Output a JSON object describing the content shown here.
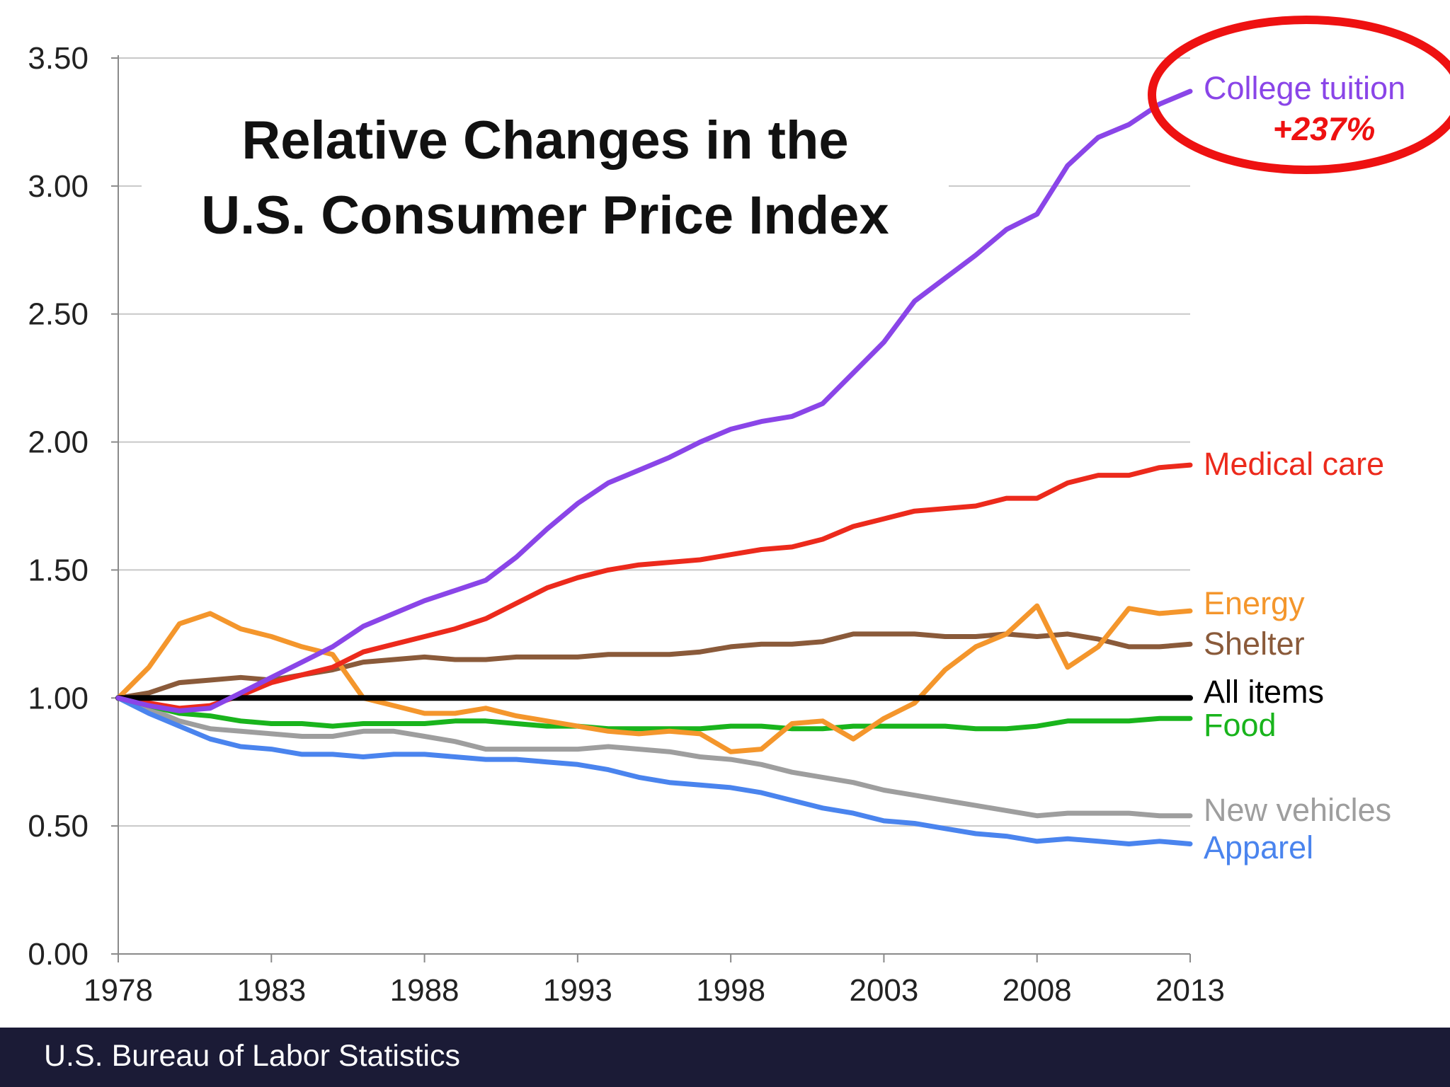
{
  "chart_data": {
    "type": "line",
    "title": "Relative Changes in the",
    "subtitle": "U.S. Consumer Price Index",
    "xlabel": "",
    "ylabel": "",
    "xlim": [
      1978,
      2013
    ],
    "ylim": [
      0,
      3.5
    ],
    "x_ticks": [
      "1978",
      "1983",
      "1988",
      "1993",
      "1998",
      "2003",
      "2008",
      "2013"
    ],
    "y_ticks": [
      "0.00",
      "0.50",
      "1.00",
      "1.50",
      "2.00",
      "2.50",
      "3.00",
      "3.50"
    ],
    "grid": true,
    "legend": "inline labels at right end of lines",
    "x": [
      1978,
      1979,
      1980,
      1981,
      1982,
      1983,
      1984,
      1985,
      1986,
      1987,
      1988,
      1989,
      1990,
      1991,
      1992,
      1993,
      1994,
      1995,
      1996,
      1997,
      1998,
      1999,
      2000,
      2001,
      2002,
      2003,
      2004,
      2005,
      2006,
      2007,
      2008,
      2009,
      2010,
      2011,
      2012,
      2013
    ],
    "series": [
      {
        "name": "College tuition",
        "color": "#8a45e8",
        "values": [
          1.0,
          0.97,
          0.95,
          0.96,
          1.02,
          1.08,
          1.14,
          1.2,
          1.28,
          1.33,
          1.38,
          1.42,
          1.46,
          1.55,
          1.66,
          1.76,
          1.84,
          1.89,
          1.94,
          2.0,
          2.05,
          2.08,
          2.1,
          2.15,
          2.27,
          2.39,
          2.55,
          2.64,
          2.73,
          2.83,
          2.89,
          3.08,
          3.19,
          3.24,
          3.32,
          3.37
        ]
      },
      {
        "name": "Medical care",
        "color": "#ec2a1c",
        "values": [
          1.0,
          0.98,
          0.96,
          0.97,
          1.01,
          1.06,
          1.09,
          1.12,
          1.18,
          1.21,
          1.24,
          1.27,
          1.31,
          1.37,
          1.43,
          1.47,
          1.5,
          1.52,
          1.53,
          1.54,
          1.56,
          1.58,
          1.59,
          1.62,
          1.67,
          1.7,
          1.73,
          1.74,
          1.75,
          1.78,
          1.78,
          1.84,
          1.87,
          1.87,
          1.9,
          1.91
        ]
      },
      {
        "name": "Energy",
        "color": "#f4962c",
        "values": [
          1.0,
          1.12,
          1.29,
          1.33,
          1.27,
          1.24,
          1.2,
          1.17,
          1.0,
          0.97,
          0.94,
          0.94,
          0.96,
          0.93,
          0.91,
          0.89,
          0.87,
          0.86,
          0.87,
          0.86,
          0.79,
          0.8,
          0.9,
          0.91,
          0.84,
          0.92,
          0.98,
          1.11,
          1.2,
          1.25,
          1.36,
          1.12,
          1.2,
          1.35,
          1.33,
          1.34
        ]
      },
      {
        "name": "Shelter",
        "color": "#8a5a3a",
        "values": [
          1.0,
          1.02,
          1.06,
          1.07,
          1.08,
          1.07,
          1.09,
          1.11,
          1.14,
          1.15,
          1.16,
          1.15,
          1.15,
          1.16,
          1.16,
          1.16,
          1.17,
          1.17,
          1.17,
          1.18,
          1.2,
          1.21,
          1.21,
          1.22,
          1.25,
          1.25,
          1.25,
          1.24,
          1.24,
          1.25,
          1.24,
          1.25,
          1.23,
          1.2,
          1.2,
          1.21
        ]
      },
      {
        "name": "All items",
        "color": "#000000",
        "values": [
          1.0,
          1.0,
          1.0,
          1.0,
          1.0,
          1.0,
          1.0,
          1.0,
          1.0,
          1.0,
          1.0,
          1.0,
          1.0,
          1.0,
          1.0,
          1.0,
          1.0,
          1.0,
          1.0,
          1.0,
          1.0,
          1.0,
          1.0,
          1.0,
          1.0,
          1.0,
          1.0,
          1.0,
          1.0,
          1.0,
          1.0,
          1.0,
          1.0,
          1.0,
          1.0,
          1.0
        ]
      },
      {
        "name": "Food",
        "color": "#19b41c",
        "values": [
          1.0,
          0.97,
          0.94,
          0.93,
          0.91,
          0.9,
          0.9,
          0.89,
          0.9,
          0.9,
          0.9,
          0.91,
          0.91,
          0.9,
          0.89,
          0.89,
          0.88,
          0.88,
          0.88,
          0.88,
          0.89,
          0.89,
          0.88,
          0.88,
          0.89,
          0.89,
          0.89,
          0.89,
          0.88,
          0.88,
          0.89,
          0.91,
          0.91,
          0.91,
          0.92,
          0.92
        ]
      },
      {
        "name": "New vehicles",
        "color": "#9e9e9e",
        "values": [
          1.0,
          0.96,
          0.91,
          0.88,
          0.87,
          0.86,
          0.85,
          0.85,
          0.87,
          0.87,
          0.85,
          0.83,
          0.8,
          0.8,
          0.8,
          0.8,
          0.81,
          0.8,
          0.79,
          0.77,
          0.76,
          0.74,
          0.71,
          0.69,
          0.67,
          0.64,
          0.62,
          0.6,
          0.58,
          0.56,
          0.54,
          0.55,
          0.55,
          0.55,
          0.54,
          0.54
        ]
      },
      {
        "name": "Apparel",
        "color": "#4a84ee",
        "values": [
          1.0,
          0.94,
          0.89,
          0.84,
          0.81,
          0.8,
          0.78,
          0.78,
          0.77,
          0.78,
          0.78,
          0.77,
          0.76,
          0.76,
          0.75,
          0.74,
          0.72,
          0.69,
          0.67,
          0.66,
          0.65,
          0.63,
          0.6,
          0.57,
          0.55,
          0.52,
          0.51,
          0.49,
          0.47,
          0.46,
          0.44,
          0.45,
          0.44,
          0.43,
          0.44,
          0.43
        ]
      }
    ],
    "annotation": {
      "text": "+237%",
      "color": "#ee1111",
      "ring_color": "#ee1111",
      "series": "College tuition"
    }
  },
  "footer": {
    "source": "U.S. Bureau of Labor Statistics"
  }
}
